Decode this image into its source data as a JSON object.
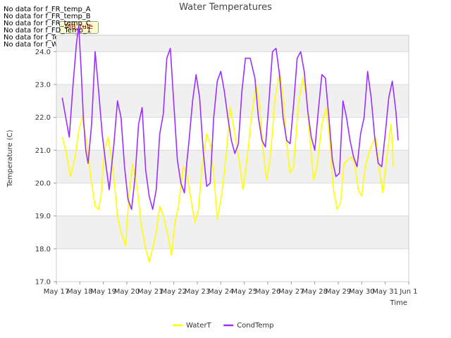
{
  "nodata_lines": [
    "No data for f_FR_temp_A",
    "No data for f_FR_temp_B",
    "No data for f_FR_temp_C",
    "No data for f_FD_Temp_1",
    "No data for f_Temp_A",
    "No data for f_WaterTemp_CTD"
  ],
  "tag_label": "MB_tule",
  "chart_data": {
    "type": "line",
    "title": "Water Temperatures",
    "xlabel": "Time",
    "ylabel": "Temperature (C)",
    "ylim": [
      17.0,
      24.5
    ],
    "xlim": [
      0,
      15
    ],
    "yticks": [
      "17.0",
      "18.0",
      "19.0",
      "20.0",
      "21.0",
      "22.0",
      "23.0",
      "24.0"
    ],
    "xtick_labels": [
      "May 17",
      "May 18",
      "May 19",
      "May 20",
      "May 21",
      "May 22",
      "May 23",
      "May 24",
      "May 25",
      "May 26",
      "May 27",
      "May 28",
      "May 29",
      "May 30",
      "May 31",
      "Jun 1"
    ],
    "grid": true,
    "legend_position": "bottom-center",
    "series": [
      {
        "name": "WaterT",
        "color": "#ffff00",
        "x": [
          0.25,
          0.4,
          0.6,
          0.8,
          0.95,
          1.1,
          1.3,
          1.5,
          1.65,
          1.8,
          1.9,
          2.05,
          2.2,
          2.4,
          2.6,
          2.75,
          2.95,
          3.1,
          3.25,
          3.45,
          3.6,
          3.8,
          3.95,
          4.1,
          4.25,
          4.4,
          4.55,
          4.75,
          4.9,
          5.05,
          5.2,
          5.4,
          5.55,
          5.75,
          5.9,
          6.05,
          6.2,
          6.4,
          6.55,
          6.7,
          6.85,
          7.05,
          7.25,
          7.4,
          7.6,
          7.8,
          7.95,
          8.1,
          8.3,
          8.5,
          8.65,
          8.8,
          8.95,
          9.1,
          9.3,
          9.5,
          9.65,
          9.8,
          9.95,
          10.1,
          10.3,
          10.5,
          10.65,
          10.8,
          10.95,
          11.1,
          11.3,
          11.5,
          11.65,
          11.8,
          11.95,
          12.1,
          12.25,
          12.4,
          12.55,
          12.7,
          12.85,
          13.0,
          13.15,
          13.3,
          13.45,
          13.6,
          13.75,
          13.9,
          14.1,
          14.25,
          14.35
        ],
        "y": [
          21.4,
          21.0,
          20.2,
          20.8,
          21.6,
          22.0,
          21.2,
          20.0,
          19.3,
          19.2,
          19.6,
          21.0,
          21.4,
          20.5,
          19.0,
          18.5,
          18.1,
          19.7,
          20.6,
          19.8,
          18.8,
          18.0,
          17.6,
          18.0,
          18.5,
          19.3,
          19.0,
          18.4,
          17.8,
          18.8,
          19.3,
          20.5,
          20.3,
          19.4,
          18.8,
          19.2,
          20.5,
          21.5,
          21.2,
          20.3,
          18.9,
          19.7,
          21.0,
          22.3,
          21.5,
          20.6,
          19.8,
          20.6,
          22.0,
          23.0,
          22.4,
          21.0,
          20.1,
          20.7,
          22.5,
          23.4,
          22.6,
          21.2,
          20.3,
          20.5,
          22.4,
          23.2,
          22.6,
          21.3,
          20.1,
          20.5,
          21.8,
          22.3,
          21.2,
          19.8,
          19.2,
          19.4,
          20.6,
          20.7,
          20.8,
          20.6,
          19.8,
          19.6,
          20.5,
          20.9,
          21.2,
          21.4,
          20.4,
          19.7,
          21.0,
          21.8,
          20.5
        ]
      },
      {
        "name": "CondTemp",
        "color": "#9b30ff",
        "x": [
          0.25,
          0.4,
          0.55,
          0.7,
          0.85,
          0.95,
          1.05,
          1.15,
          1.25,
          1.35,
          1.5,
          1.65,
          1.8,
          1.95,
          2.1,
          2.25,
          2.45,
          2.6,
          2.75,
          2.9,
          3.05,
          3.2,
          3.35,
          3.5,
          3.65,
          3.8,
          3.95,
          4.1,
          4.25,
          4.4,
          4.55,
          4.7,
          4.85,
          5.0,
          5.15,
          5.3,
          5.45,
          5.55,
          5.65,
          5.8,
          5.95,
          6.1,
          6.25,
          6.4,
          6.55,
          6.7,
          6.85,
          7.0,
          7.15,
          7.3,
          7.45,
          7.6,
          7.75,
          7.9,
          8.05,
          8.25,
          8.45,
          8.6,
          8.75,
          8.9,
          9.05,
          9.2,
          9.35,
          9.5,
          9.65,
          9.8,
          9.95,
          10.1,
          10.25,
          10.4,
          10.55,
          10.7,
          10.85,
          11.0,
          11.15,
          11.3,
          11.45,
          11.6,
          11.75,
          11.9,
          12.05,
          12.2,
          12.35,
          12.5,
          12.65,
          12.8,
          12.95,
          13.1,
          13.25,
          13.4,
          13.55,
          13.7,
          13.85,
          14.0,
          14.15,
          14.3,
          14.45,
          14.55
        ],
        "y": [
          22.6,
          22.0,
          21.4,
          22.9,
          24.2,
          24.8,
          23.5,
          22.0,
          21.0,
          20.6,
          21.8,
          24.0,
          22.8,
          21.5,
          20.6,
          19.8,
          21.2,
          22.5,
          22.0,
          20.5,
          19.5,
          19.2,
          20.2,
          21.8,
          22.3,
          20.4,
          19.6,
          19.2,
          19.8,
          21.5,
          22.1,
          23.8,
          24.1,
          22.4,
          20.7,
          20.0,
          19.7,
          20.6,
          21.3,
          22.5,
          23.3,
          22.6,
          21.0,
          19.9,
          20.0,
          22.0,
          23.1,
          23.4,
          22.8,
          22.0,
          21.3,
          20.9,
          21.2,
          22.8,
          23.8,
          23.8,
          23.2,
          22.0,
          21.3,
          21.1,
          22.5,
          24.0,
          24.1,
          23.3,
          22.0,
          21.3,
          21.2,
          22.4,
          23.8,
          24.0,
          23.4,
          22.2,
          21.4,
          21.0,
          22.2,
          23.3,
          23.2,
          22.0,
          20.7,
          20.2,
          20.3,
          22.5,
          22.0,
          21.3,
          20.8,
          20.5,
          21.5,
          22.0,
          23.4,
          22.6,
          21.4,
          20.6,
          20.5,
          21.5,
          22.6,
          23.1,
          22.2,
          21.3
        ]
      }
    ]
  }
}
